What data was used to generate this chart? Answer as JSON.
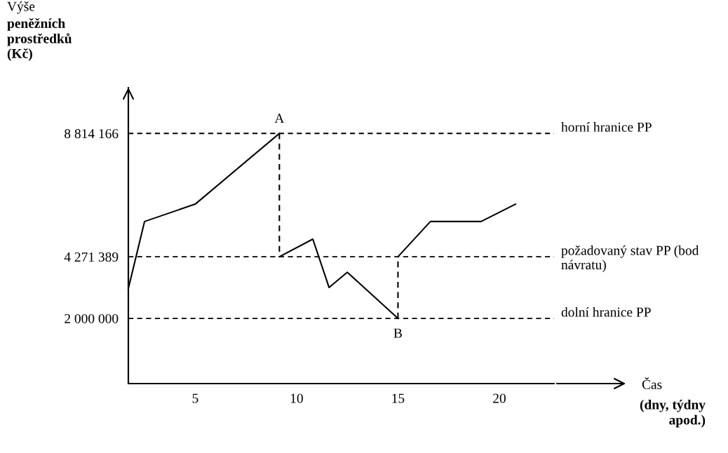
{
  "chart_data": {
    "type": "line",
    "ylabel": "Výše peněžních prostředků (Kč)",
    "xlim": [
      1.7,
      22.7
    ],
    "xticks": [
      5,
      10,
      15,
      20
    ],
    "ylim": [
      -400000,
      10500000
    ],
    "yticks": [
      {
        "value": 2000000,
        "label": "2 000 000"
      },
      {
        "value": 4271389,
        "label": "4 271 389"
      },
      {
        "value": 8814166,
        "label": "8 814 166"
      }
    ],
    "grid": false,
    "marker": "none",
    "series": [
      {
        "line_style": "solid",
        "color": "#000000",
        "x": [
          1.7,
          2.5,
          5.0,
          9.15
        ],
        "values": [
          3100000,
          5570000,
          6210000,
          8814166
        ]
      },
      {
        "line_style": "solid",
        "color": "#000000",
        "x": [
          9.15,
          10.8,
          11.6,
          12.5,
          15.0
        ],
        "values": [
          4271389,
          4920000,
          3140000,
          3700000,
          2000000
        ]
      },
      {
        "line_style": "solid",
        "color": "#000000",
        "x": [
          15.0,
          16.6,
          19.1,
          20.8
        ],
        "values": [
          4271389,
          5570000,
          5570000,
          6210000
        ]
      },
      {
        "line_style": "dashed",
        "color": "#000000",
        "x": [
          9.15,
          9.15
        ],
        "values": [
          8814166,
          4271389
        ]
      },
      {
        "line_style": "dashed",
        "color": "#000000",
        "x": [
          15.0,
          15.0
        ],
        "values": [
          2000000,
          4271389
        ]
      }
    ],
    "ref_lines": [
      {
        "axis": "y",
        "value": 8814166,
        "label": "horní hranice PP",
        "color": "#000000",
        "line_style": "dashed"
      },
      {
        "axis": "y",
        "value": 4271389,
        "label": "požadovaný stav PP (bod návratu)",
        "color": "#000000",
        "line_style": "dashed"
      },
      {
        "axis": "y",
        "value": 2000000,
        "label": "dolní hranice PP",
        "color": "#000000",
        "line_style": "dashed"
      }
    ],
    "annotations": [
      {
        "text": "A",
        "x": 9.15,
        "y": 8814166
      },
      {
        "text": "B",
        "x": 15.0,
        "y": 2000000
      },
      "Čas",
      "(dny, týdny apod.)"
    ]
  }
}
